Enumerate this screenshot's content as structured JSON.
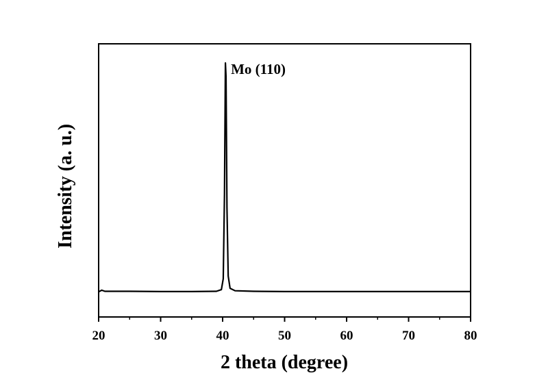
{
  "chart_data": {
    "type": "line",
    "x_label": "2 theta (degree)",
    "y_label": "Intensity (a. u.)",
    "annotation": "Mo (110)",
    "x": [
      20,
      20.5,
      21,
      25,
      30,
      35,
      39,
      39.8,
      40.1,
      40.3,
      40.45,
      40.55,
      40.7,
      40.9,
      41.2,
      42,
      45,
      50,
      55,
      60,
      65,
      70,
      75,
      80
    ],
    "series": [
      {
        "name": "Mo",
        "color": "#000000",
        "values": [
          9.2,
          9.8,
          9.4,
          9.4,
          9.3,
          9.3,
          9.4,
          10,
          14,
          45,
          93,
          88,
          40,
          15,
          10.5,
          9.6,
          9.4,
          9.3,
          9.3,
          9.3,
          9.3,
          9.3,
          9.3,
          9.3
        ]
      }
    ],
    "xlim": [
      20,
      80
    ],
    "ylim": [
      0,
      100
    ],
    "xticks": [
      20,
      30,
      40,
      50,
      60,
      70,
      80
    ],
    "xminorticks": [
      25,
      35,
      45,
      55,
      65,
      75
    ]
  }
}
